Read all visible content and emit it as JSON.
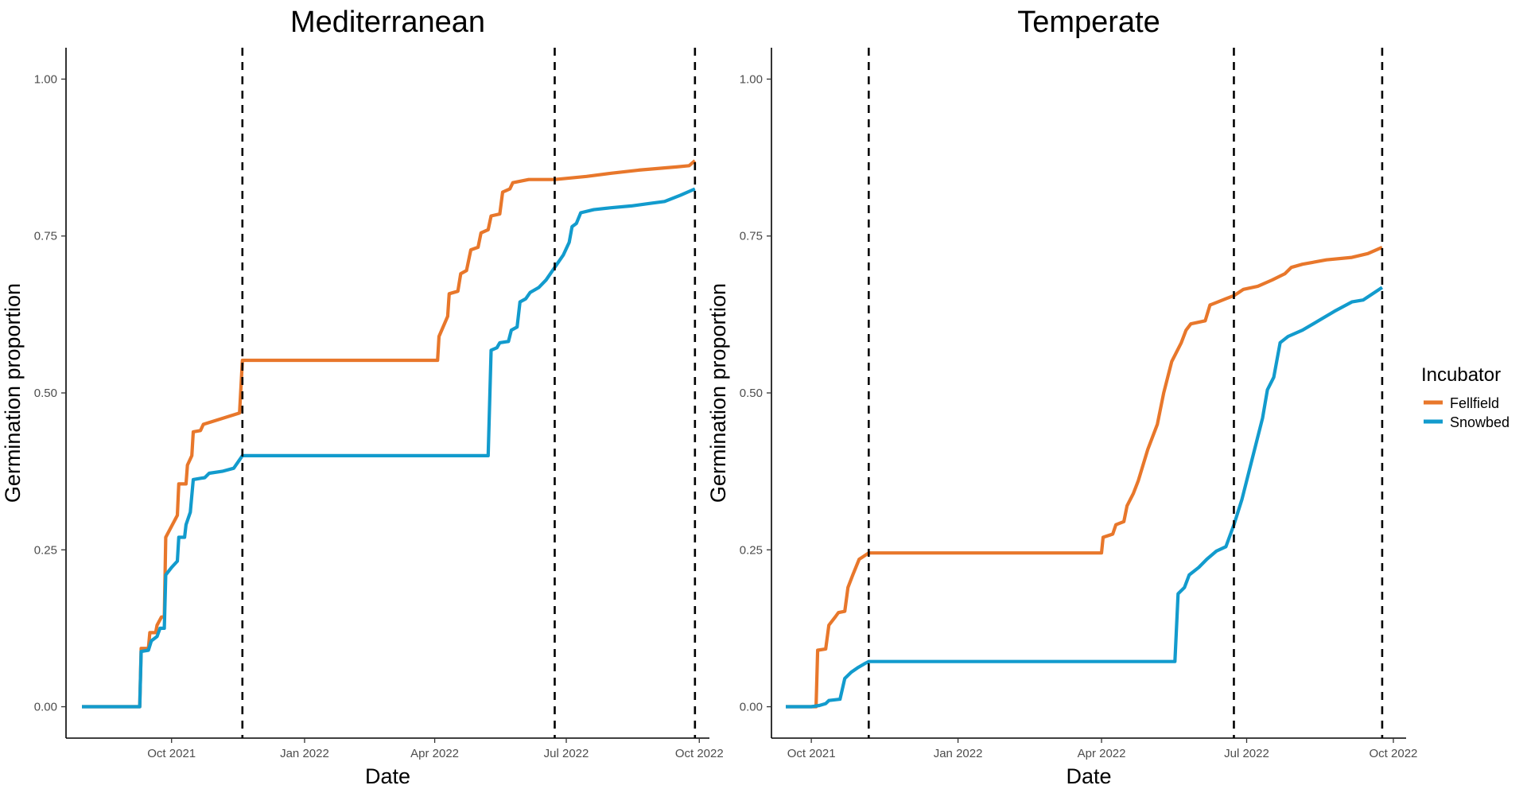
{
  "figure": {
    "legend": {
      "title": "Incubator",
      "entries": [
        {
          "name": "Fellfield",
          "color": "#E8772B"
        },
        {
          "name": "Snowbed",
          "color": "#129BCD"
        }
      ]
    }
  },
  "chart_data": [
    {
      "type": "line",
      "title": "Mediterranean",
      "xlabel": "Date",
      "ylabel": "Germination proportion",
      "xlim": [
        "2021-07-20",
        "2022-10-08"
      ],
      "ylim": [
        -0.05,
        1.05
      ],
      "x_ticks": [
        {
          "date": "2021-10-01",
          "label": "Oct 2021"
        },
        {
          "date": "2022-01-01",
          "label": "Jan 2022"
        },
        {
          "date": "2022-04-01",
          "label": "Apr 2022"
        },
        {
          "date": "2022-07-01",
          "label": "Jul 2022"
        },
        {
          "date": "2022-10-01",
          "label": "Oct 2022"
        }
      ],
      "y_ticks": [
        0,
        0.25,
        0.5,
        0.75,
        1
      ],
      "y_tick_labels": [
        "0.00",
        "0.25",
        "0.50",
        "0.75",
        "1.00"
      ],
      "vlines": [
        "2021-11-19",
        "2022-06-23",
        "2022-09-28"
      ],
      "grid": false,
      "legend_position": "right",
      "series": [
        {
          "name": "Fellfield",
          "color": "#E8772B",
          "points": [
            [
              "2021-07-31",
              0
            ],
            [
              "2021-09-09",
              0
            ],
            [
              "2021-09-10",
              0.093
            ],
            [
              "2021-09-15",
              0.093
            ],
            [
              "2021-09-16",
              0.118
            ],
            [
              "2021-09-20",
              0.118
            ],
            [
              "2021-09-21",
              0.13
            ],
            [
              "2021-09-24",
              0.143
            ],
            [
              "2021-09-26",
              0.143
            ],
            [
              "2021-09-27",
              0.27
            ],
            [
              "2021-10-05",
              0.305
            ],
            [
              "2021-10-06",
              0.355
            ],
            [
              "2021-10-11",
              0.355
            ],
            [
              "2021-10-12",
              0.385
            ],
            [
              "2021-10-15",
              0.4
            ],
            [
              "2021-10-16",
              0.438
            ],
            [
              "2021-10-21",
              0.44
            ],
            [
              "2021-10-23",
              0.45
            ],
            [
              "2021-11-17",
              0.468
            ],
            [
              "2021-11-19",
              0.552
            ],
            [
              "2022-04-03",
              0.552
            ],
            [
              "2022-04-04",
              0.59
            ],
            [
              "2022-04-10",
              0.622
            ],
            [
              "2022-04-11",
              0.658
            ],
            [
              "2022-04-17",
              0.662
            ],
            [
              "2022-04-19",
              0.69
            ],
            [
              "2022-04-23",
              0.695
            ],
            [
              "2022-04-26",
              0.728
            ],
            [
              "2022-05-01",
              0.732
            ],
            [
              "2022-05-03",
              0.755
            ],
            [
              "2022-05-08",
              0.76
            ],
            [
              "2022-05-10",
              0.782
            ],
            [
              "2022-05-16",
              0.785
            ],
            [
              "2022-05-18",
              0.82
            ],
            [
              "2022-05-23",
              0.825
            ],
            [
              "2022-05-25",
              0.835
            ],
            [
              "2022-06-05",
              0.84
            ],
            [
              "2022-06-23",
              0.84
            ],
            [
              "2022-07-15",
              0.845
            ],
            [
              "2022-08-01",
              0.85
            ],
            [
              "2022-08-20",
              0.855
            ],
            [
              "2022-09-15",
              0.86
            ],
            [
              "2022-09-24",
              0.862
            ],
            [
              "2022-09-28",
              0.87
            ]
          ]
        },
        {
          "name": "Snowbed",
          "color": "#129BCD",
          "points": [
            [
              "2021-07-31",
              0
            ],
            [
              "2021-09-09",
              0
            ],
            [
              "2021-09-10",
              0.088
            ],
            [
              "2021-09-15",
              0.09
            ],
            [
              "2021-09-17",
              0.105
            ],
            [
              "2021-09-21",
              0.112
            ],
            [
              "2021-09-23",
              0.125
            ],
            [
              "2021-09-26",
              0.125
            ],
            [
              "2021-09-27",
              0.21
            ],
            [
              "2021-10-01",
              0.222
            ],
            [
              "2021-10-05",
              0.232
            ],
            [
              "2021-10-06",
              0.27
            ],
            [
              "2021-10-10",
              0.27
            ],
            [
              "2021-10-11",
              0.29
            ],
            [
              "2021-10-14",
              0.31
            ],
            [
              "2021-10-16",
              0.362
            ],
            [
              "2021-10-24",
              0.365
            ],
            [
              "2021-10-27",
              0.372
            ],
            [
              "2021-11-05",
              0.375
            ],
            [
              "2021-11-13",
              0.38
            ],
            [
              "2021-11-19",
              0.4
            ],
            [
              "2022-05-08",
              0.4
            ],
            [
              "2022-05-10",
              0.568
            ],
            [
              "2022-05-14",
              0.572
            ],
            [
              "2022-05-16",
              0.58
            ],
            [
              "2022-05-22",
              0.582
            ],
            [
              "2022-05-24",
              0.6
            ],
            [
              "2022-05-28",
              0.605
            ],
            [
              "2022-05-30",
              0.645
            ],
            [
              "2022-06-03",
              0.65
            ],
            [
              "2022-06-06",
              0.66
            ],
            [
              "2022-06-12",
              0.668
            ],
            [
              "2022-06-17",
              0.68
            ],
            [
              "2022-06-23",
              0.7
            ],
            [
              "2022-06-29",
              0.72
            ],
            [
              "2022-07-03",
              0.74
            ],
            [
              "2022-07-05",
              0.765
            ],
            [
              "2022-07-08",
              0.77
            ],
            [
              "2022-07-11",
              0.787
            ],
            [
              "2022-07-20",
              0.792
            ],
            [
              "2022-08-01",
              0.795
            ],
            [
              "2022-08-15",
              0.798
            ],
            [
              "2022-08-28",
              0.802
            ],
            [
              "2022-09-07",
              0.805
            ],
            [
              "2022-09-18",
              0.815
            ],
            [
              "2022-09-28",
              0.825
            ]
          ]
        }
      ]
    },
    {
      "type": "line",
      "title": "Temperate",
      "xlabel": "Date",
      "ylabel": "Germination proportion",
      "xlim": [
        "2021-09-06",
        "2022-10-09"
      ],
      "ylim": [
        -0.05,
        1.05
      ],
      "x_ticks": [
        {
          "date": "2021-10-01",
          "label": "Oct 2021"
        },
        {
          "date": "2022-01-01",
          "label": "Jan 2022"
        },
        {
          "date": "2022-04-01",
          "label": "Apr 2022"
        },
        {
          "date": "2022-07-01",
          "label": "Jul 2022"
        },
        {
          "date": "2022-10-01",
          "label": "Oct 2022"
        }
      ],
      "y_ticks": [
        0,
        0.25,
        0.5,
        0.75,
        1
      ],
      "y_tick_labels": [
        "0.00",
        "0.25",
        "0.50",
        "0.75",
        "1.00"
      ],
      "vlines": [
        "2021-11-06",
        "2022-06-23",
        "2022-09-24"
      ],
      "grid": false,
      "legend_position": "right",
      "series": [
        {
          "name": "Fellfield",
          "color": "#E8772B",
          "points": [
            [
              "2021-09-15",
              0
            ],
            [
              "2021-10-04",
              0
            ],
            [
              "2021-10-05",
              0.09
            ],
            [
              "2021-10-10",
              0.092
            ],
            [
              "2021-10-12",
              0.13
            ],
            [
              "2021-10-16",
              0.143
            ],
            [
              "2021-10-18",
              0.15
            ],
            [
              "2021-10-22",
              0.152
            ],
            [
              "2021-10-24",
              0.19
            ],
            [
              "2021-10-27",
              0.21
            ],
            [
              "2021-10-31",
              0.235
            ],
            [
              "2021-11-06",
              0.245
            ],
            [
              "2022-04-01",
              0.245
            ],
            [
              "2022-04-02",
              0.27
            ],
            [
              "2022-04-08",
              0.275
            ],
            [
              "2022-04-10",
              0.29
            ],
            [
              "2022-04-15",
              0.295
            ],
            [
              "2022-04-17",
              0.32
            ],
            [
              "2022-04-21",
              0.34
            ],
            [
              "2022-04-24",
              0.36
            ],
            [
              "2022-04-30",
              0.41
            ],
            [
              "2022-05-06",
              0.45
            ],
            [
              "2022-05-10",
              0.5
            ],
            [
              "2022-05-15",
              0.55
            ],
            [
              "2022-05-21",
              0.58
            ],
            [
              "2022-05-24",
              0.6
            ],
            [
              "2022-05-27",
              0.61
            ],
            [
              "2022-06-05",
              0.615
            ],
            [
              "2022-06-08",
              0.64
            ],
            [
              "2022-06-13",
              0.645
            ],
            [
              "2022-06-18",
              0.65
            ],
            [
              "2022-06-23",
              0.655
            ],
            [
              "2022-06-29",
              0.665
            ],
            [
              "2022-07-08",
              0.67
            ],
            [
              "2022-07-17",
              0.68
            ],
            [
              "2022-07-25",
              0.69
            ],
            [
              "2022-07-29",
              0.7
            ],
            [
              "2022-08-05",
              0.705
            ],
            [
              "2022-08-20",
              0.712
            ],
            [
              "2022-09-05",
              0.716
            ],
            [
              "2022-09-15",
              0.722
            ],
            [
              "2022-09-24",
              0.732
            ]
          ]
        },
        {
          "name": "Snowbed",
          "color": "#129BCD",
          "points": [
            [
              "2021-09-15",
              0
            ],
            [
              "2021-10-01",
              0
            ],
            [
              "2021-10-06",
              0.002
            ],
            [
              "2021-10-10",
              0.005
            ],
            [
              "2021-10-12",
              0.01
            ],
            [
              "2021-10-19",
              0.012
            ],
            [
              "2021-10-22",
              0.045
            ],
            [
              "2021-10-26",
              0.055
            ],
            [
              "2021-10-30",
              0.062
            ],
            [
              "2021-11-03",
              0.068
            ],
            [
              "2021-11-06",
              0.072
            ],
            [
              "2022-05-17",
              0.072
            ],
            [
              "2022-05-19",
              0.18
            ],
            [
              "2022-05-23",
              0.19
            ],
            [
              "2022-05-26",
              0.21
            ],
            [
              "2022-06-01",
              0.222
            ],
            [
              "2022-06-06",
              0.235
            ],
            [
              "2022-06-12",
              0.248
            ],
            [
              "2022-06-18",
              0.255
            ],
            [
              "2022-06-23",
              0.29
            ],
            [
              "2022-06-28",
              0.33
            ],
            [
              "2022-07-03",
              0.38
            ],
            [
              "2022-07-08",
              0.43
            ],
            [
              "2022-07-11",
              0.46
            ],
            [
              "2022-07-14",
              0.505
            ],
            [
              "2022-07-18",
              0.525
            ],
            [
              "2022-07-22",
              0.58
            ],
            [
              "2022-07-27",
              0.59
            ],
            [
              "2022-08-05",
              0.6
            ],
            [
              "2022-08-15",
              0.615
            ],
            [
              "2022-08-25",
              0.63
            ],
            [
              "2022-09-05",
              0.645
            ],
            [
              "2022-09-12",
              0.648
            ],
            [
              "2022-09-24",
              0.668
            ]
          ]
        }
      ]
    }
  ]
}
